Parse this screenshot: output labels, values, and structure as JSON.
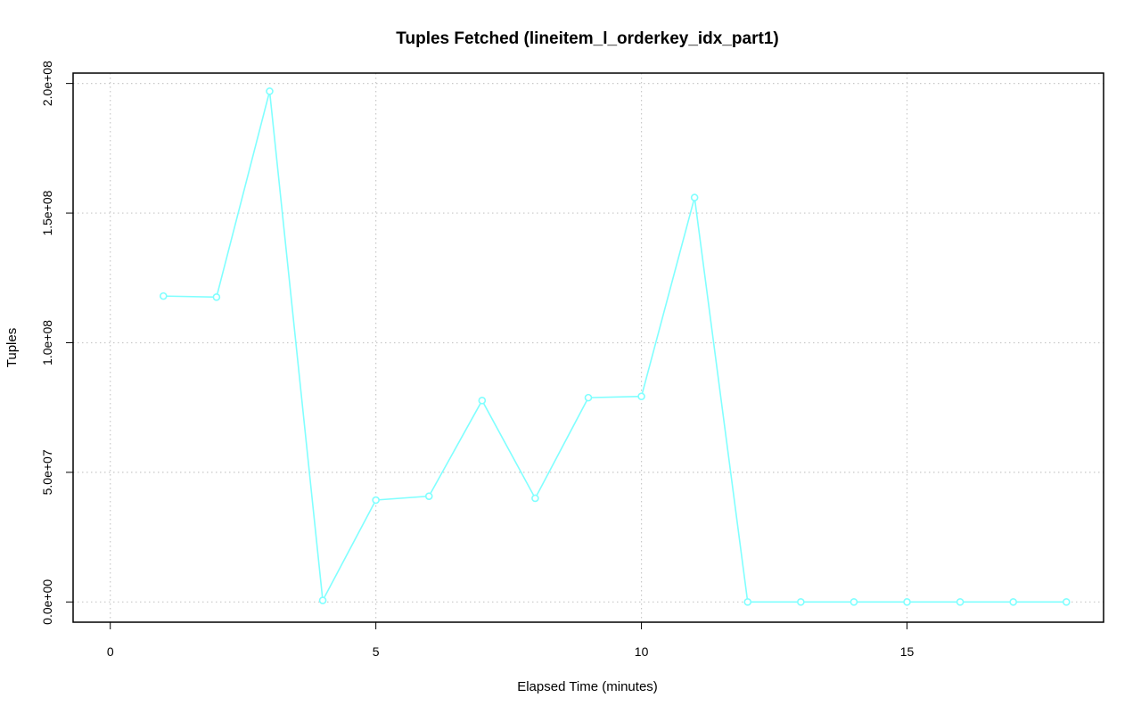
{
  "chart_data": {
    "type": "line",
    "title": "Tuples Fetched (lineitem_l_orderkey_idx_part1)",
    "xlabel": "Elapsed Time (minutes)",
    "ylabel": "Tuples",
    "xlim": [
      -0.7,
      18.7
    ],
    "ylim": [
      -7800000,
      204000000
    ],
    "x_ticks": [
      0,
      5,
      10,
      15
    ],
    "x_tick_labels": [
      "0",
      "5",
      "10",
      "15"
    ],
    "y_ticks": [
      0,
      50000000,
      100000000,
      150000000,
      200000000
    ],
    "y_tick_labels": [
      "0.0e+00",
      "5.0e+07",
      "1.0e+08",
      "1.5e+08",
      "2.0e+08"
    ],
    "grid": true,
    "series": [
      {
        "color": "#80ffff",
        "x": [
          1,
          2,
          3,
          4,
          5,
          6,
          7,
          8,
          9,
          10,
          11,
          12,
          13,
          14,
          15,
          16,
          17,
          18
        ],
        "values": [
          118000000,
          117600000,
          197000000,
          600000,
          39300000,
          40800000,
          77700000,
          40000000,
          78800000,
          79300000,
          156000000,
          0,
          0,
          0,
          0,
          0,
          0,
          0
        ]
      }
    ]
  }
}
